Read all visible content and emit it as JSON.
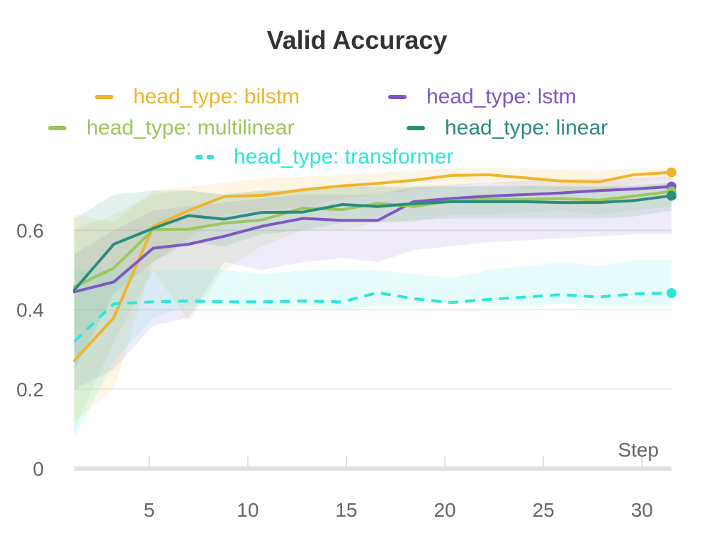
{
  "chart_data": {
    "type": "line",
    "title": "Valid Accuracy",
    "xlabel": "Step",
    "ylabel": "",
    "xlim": [
      1.2,
      31.5
    ],
    "ylim": [
      0,
      0.77
    ],
    "x_ticks": [
      "5",
      "10",
      "15",
      "20",
      "25",
      "30"
    ],
    "y_ticks": [
      "0",
      "0.2",
      "0.4",
      "0.6"
    ],
    "grid": true,
    "legend_position": "top",
    "series": [
      {
        "name": "head_type: bilstm",
        "color": "#f0b429",
        "dash": false,
        "x": [
          1.2,
          3.2,
          5.2,
          7.0,
          8.8,
          10.7,
          12.8,
          14.8,
          16.6,
          18.4,
          20.3,
          22.2,
          24.1,
          25.9,
          27.8,
          29.6,
          31.5
        ],
        "y": [
          0.272,
          0.38,
          0.61,
          0.65,
          0.685,
          0.688,
          0.702,
          0.712,
          0.718,
          0.726,
          0.738,
          0.74,
          0.732,
          0.724,
          0.722,
          0.74,
          0.746
        ],
        "band_upper": [
          0.64,
          0.62,
          0.7,
          0.71,
          0.72,
          0.73,
          0.735,
          0.74,
          0.745,
          0.75,
          0.755,
          0.758,
          0.756,
          0.752,
          0.75,
          0.755,
          0.758
        ],
        "band_lower": [
          0.12,
          0.2,
          0.52,
          0.58,
          0.64,
          0.65,
          0.66,
          0.68,
          0.69,
          0.7,
          0.71,
          0.72,
          0.705,
          0.7,
          0.695,
          0.72,
          0.73
        ]
      },
      {
        "name": "head_type: lstm",
        "color": "#7e57c2",
        "dash": false,
        "x": [
          1.2,
          3.2,
          5.2,
          7.0,
          8.8,
          10.7,
          12.8,
          14.8,
          16.6,
          18.4,
          20.3,
          22.2,
          24.1,
          25.9,
          27.8,
          29.6,
          31.5
        ],
        "y": [
          0.445,
          0.47,
          0.555,
          0.565,
          0.585,
          0.61,
          0.63,
          0.625,
          0.625,
          0.672,
          0.68,
          0.686,
          0.69,
          0.694,
          0.7,
          0.704,
          0.71
        ],
        "band_upper": [
          0.54,
          0.6,
          0.65,
          0.66,
          0.67,
          0.68,
          0.69,
          0.69,
          0.69,
          0.71,
          0.715,
          0.72,
          0.725,
          0.728,
          0.73,
          0.732,
          0.735
        ],
        "band_lower": [
          0.2,
          0.25,
          0.36,
          0.38,
          0.52,
          0.5,
          0.52,
          0.53,
          0.52,
          0.55,
          0.56,
          0.57,
          0.575,
          0.58,
          0.585,
          0.59,
          0.59
        ]
      },
      {
        "name": "head_type: multilinear",
        "color": "#9bc65c",
        "dash": false,
        "x": [
          1.2,
          3.2,
          5.2,
          7.0,
          8.8,
          10.7,
          12.8,
          14.8,
          16.6,
          18.4,
          20.3,
          22.2,
          24.1,
          25.9,
          27.8,
          29.6,
          31.5
        ],
        "y": [
          0.458,
          0.505,
          0.602,
          0.603,
          0.618,
          0.626,
          0.656,
          0.652,
          0.668,
          0.66,
          0.674,
          0.678,
          0.678,
          0.68,
          0.676,
          0.686,
          0.698
        ],
        "band_upper": [
          0.6,
          0.64,
          0.69,
          0.7,
          0.69,
          0.7,
          0.7,
          0.71,
          0.71,
          0.705,
          0.71,
          0.71,
          0.71,
          0.712,
          0.71,
          0.715,
          0.72
        ],
        "band_lower": [
          0.1,
          0.32,
          0.5,
          0.37,
          0.5,
          0.56,
          0.6,
          0.6,
          0.62,
          0.62,
          0.64,
          0.64,
          0.645,
          0.65,
          0.64,
          0.65,
          0.66
        ]
      },
      {
        "name": "head_type: linear",
        "color": "#2a8c7c",
        "dash": false,
        "x": [
          1.2,
          3.2,
          5.2,
          7.0,
          8.8,
          10.7,
          12.8,
          14.8,
          16.6,
          18.4,
          20.3,
          22.2,
          24.1,
          25.9,
          27.8,
          29.6,
          31.5
        ],
        "y": [
          0.45,
          0.565,
          0.605,
          0.637,
          0.628,
          0.645,
          0.646,
          0.665,
          0.66,
          0.667,
          0.672,
          0.672,
          0.672,
          0.67,
          0.67,
          0.675,
          0.687
        ],
        "band_upper": [
          0.63,
          0.69,
          0.7,
          0.7,
          0.69,
          0.7,
          0.7,
          0.71,
          0.71,
          0.71,
          0.71,
          0.712,
          0.712,
          0.71,
          0.71,
          0.712,
          0.72
        ],
        "band_lower": [
          0.25,
          0.44,
          0.52,
          0.57,
          0.56,
          0.59,
          0.6,
          0.62,
          0.62,
          0.625,
          0.63,
          0.63,
          0.63,
          0.63,
          0.63,
          0.635,
          0.65
        ]
      },
      {
        "name": "head_type: transformer",
        "color": "#2ee6d6",
        "dash": true,
        "x": [
          1.2,
          3.2,
          5.2,
          7.0,
          8.8,
          10.7,
          12.8,
          14.8,
          16.6,
          18.4,
          20.3,
          22.2,
          24.1,
          25.9,
          27.8,
          29.6,
          31.5
        ],
        "y": [
          0.32,
          0.415,
          0.42,
          0.422,
          0.42,
          0.42,
          0.422,
          0.42,
          0.443,
          0.428,
          0.418,
          0.426,
          0.432,
          0.438,
          0.432,
          0.44,
          0.442
        ],
        "band_upper": [
          0.5,
          0.5,
          0.5,
          0.5,
          0.5,
          0.49,
          0.5,
          0.5,
          0.5,
          0.49,
          0.48,
          0.5,
          0.51,
          0.52,
          0.51,
          0.525,
          0.525
        ],
        "band_lower": [
          0.08,
          0.27,
          0.38,
          0.41,
          0.41,
          0.4,
          0.41,
          0.4,
          0.41,
          0.41,
          0.42,
          0.41,
          0.41,
          0.415,
          0.41,
          0.41,
          0.41
        ]
      }
    ]
  }
}
